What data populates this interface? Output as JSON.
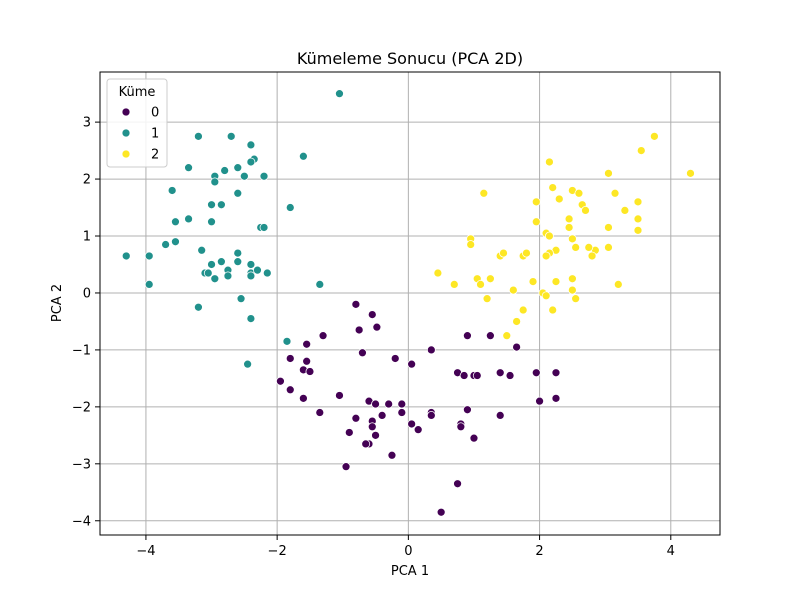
{
  "chart_data": {
    "type": "scatter",
    "title": "Kümeleme Sonucu (PCA 2D)",
    "xlabel": "PCA 1",
    "ylabel": "PCA 2",
    "xlim": [
      -4.7,
      4.75
    ],
    "ylim": [
      -4.25,
      3.88
    ],
    "xticks": [
      -4,
      -2,
      0,
      2,
      4
    ],
    "yticks": [
      -4,
      -3,
      -2,
      -1,
      0,
      1,
      2,
      3
    ],
    "xtick_labels": [
      "−4",
      "−2",
      "0",
      "2",
      "4"
    ],
    "ytick_labels": [
      "−4",
      "−3",
      "−2",
      "−1",
      "0",
      "1",
      "2",
      "3"
    ],
    "grid": true,
    "legend": {
      "title": "Küme",
      "placement": "top-left"
    },
    "series": [
      {
        "name": "0",
        "color": "#440154",
        "points": [
          [
            -0.8,
            -0.2
          ],
          [
            -0.55,
            -0.38
          ],
          [
            -0.48,
            -0.6
          ],
          [
            -0.75,
            -0.65
          ],
          [
            -1.3,
            -0.75
          ],
          [
            -1.55,
            -0.9
          ],
          [
            -0.7,
            -1.05
          ],
          [
            -1.8,
            -1.15
          ],
          [
            -1.55,
            -1.2
          ],
          [
            -1.6,
            -1.35
          ],
          [
            -1.5,
            -1.38
          ],
          [
            -1.95,
            -1.55
          ],
          [
            -1.8,
            -1.7
          ],
          [
            -1.6,
            -1.85
          ],
          [
            -1.05,
            -1.8
          ],
          [
            -1.35,
            -2.1
          ],
          [
            -0.6,
            -1.9
          ],
          [
            -0.5,
            -1.95
          ],
          [
            -0.3,
            -1.95
          ],
          [
            -0.1,
            -1.95
          ],
          [
            -0.1,
            -2.1
          ],
          [
            -0.4,
            -2.15
          ],
          [
            -0.55,
            -2.25
          ],
          [
            -0.55,
            -2.35
          ],
          [
            -0.8,
            -2.2
          ],
          [
            -0.9,
            -2.45
          ],
          [
            -0.5,
            -2.5
          ],
          [
            -0.6,
            -2.65
          ],
          [
            -0.65,
            -2.65
          ],
          [
            -0.95,
            -3.05
          ],
          [
            -0.25,
            -2.85
          ],
          [
            0.05,
            -2.3
          ],
          [
            0.15,
            -2.4
          ],
          [
            0.35,
            -2.1
          ],
          [
            0.35,
            -2.15
          ],
          [
            0.8,
            -2.3
          ],
          [
            0.8,
            -2.35
          ],
          [
            0.9,
            -2.05
          ],
          [
            1.0,
            -2.55
          ],
          [
            1.4,
            -2.15
          ],
          [
            0.75,
            -3.35
          ],
          [
            0.5,
            -3.85
          ],
          [
            -0.2,
            -1.15
          ],
          [
            0.05,
            -1.25
          ],
          [
            0.35,
            -1.0
          ],
          [
            0.9,
            -0.75
          ],
          [
            1.25,
            -0.75
          ],
          [
            0.75,
            -1.4
          ],
          [
            0.85,
            -1.45
          ],
          [
            1.0,
            -1.45
          ],
          [
            1.05,
            -1.45
          ],
          [
            1.4,
            -1.4
          ],
          [
            1.55,
            -1.45
          ],
          [
            1.65,
            -0.95
          ],
          [
            1.95,
            -1.4
          ],
          [
            2.25,
            -1.4
          ],
          [
            2.0,
            -1.9
          ],
          [
            2.25,
            -1.85
          ]
        ]
      },
      {
        "name": "1",
        "color": "#21918c",
        "points": [
          [
            -1.05,
            3.5
          ],
          [
            -3.2,
            2.75
          ],
          [
            -2.7,
            2.75
          ],
          [
            -2.4,
            2.6
          ],
          [
            -2.35,
            2.35
          ],
          [
            -2.4,
            2.3
          ],
          [
            -1.6,
            2.4
          ],
          [
            -3.35,
            2.2
          ],
          [
            -2.6,
            2.2
          ],
          [
            -2.8,
            2.15
          ],
          [
            -2.95,
            2.05
          ],
          [
            -2.95,
            1.95
          ],
          [
            -2.5,
            2.05
          ],
          [
            -2.2,
            2.05
          ],
          [
            -3.6,
            1.8
          ],
          [
            -2.6,
            1.75
          ],
          [
            -3.0,
            1.55
          ],
          [
            -2.85,
            1.55
          ],
          [
            -1.8,
            1.5
          ],
          [
            -3.55,
            1.25
          ],
          [
            -3.35,
            1.3
          ],
          [
            -3.0,
            1.25
          ],
          [
            -2.25,
            1.15
          ],
          [
            -2.2,
            1.15
          ],
          [
            -3.7,
            0.85
          ],
          [
            -3.55,
            0.9
          ],
          [
            -3.15,
            0.75
          ],
          [
            -2.6,
            0.7
          ],
          [
            -2.6,
            0.55
          ],
          [
            -2.85,
            0.55
          ],
          [
            -3.0,
            0.5
          ],
          [
            -2.4,
            0.5
          ],
          [
            -3.1,
            0.35
          ],
          [
            -3.05,
            0.35
          ],
          [
            -2.75,
            0.4
          ],
          [
            -2.4,
            0.35
          ],
          [
            -2.3,
            0.4
          ],
          [
            -2.15,
            0.35
          ],
          [
            -2.75,
            0.3
          ],
          [
            -2.95,
            0.25
          ],
          [
            -2.4,
            0.3
          ],
          [
            -3.95,
            0.65
          ],
          [
            -4.3,
            0.65
          ],
          [
            -3.95,
            0.15
          ],
          [
            -1.35,
            0.15
          ],
          [
            -2.55,
            -0.1
          ],
          [
            -3.2,
            -0.25
          ],
          [
            -2.4,
            -0.45
          ],
          [
            -1.85,
            -0.85
          ],
          [
            -2.45,
            -1.25
          ]
        ]
      },
      {
        "name": "2",
        "color": "#fde725",
        "points": [
          [
            3.75,
            2.75
          ],
          [
            3.55,
            2.5
          ],
          [
            4.3,
            2.1
          ],
          [
            3.05,
            2.1
          ],
          [
            2.15,
            2.3
          ],
          [
            2.2,
            1.85
          ],
          [
            2.5,
            1.8
          ],
          [
            2.6,
            1.75
          ],
          [
            3.15,
            1.75
          ],
          [
            3.5,
            1.6
          ],
          [
            1.15,
            1.75
          ],
          [
            1.95,
            1.6
          ],
          [
            2.3,
            1.65
          ],
          [
            2.65,
            1.55
          ],
          [
            2.45,
            1.3
          ],
          [
            2.7,
            1.45
          ],
          [
            1.95,
            1.25
          ],
          [
            2.1,
            1.05
          ],
          [
            2.15,
            1.0
          ],
          [
            2.45,
            1.15
          ],
          [
            3.05,
            1.15
          ],
          [
            3.5,
            1.3
          ],
          [
            3.5,
            1.1
          ],
          [
            3.3,
            1.45
          ],
          [
            0.95,
            0.95
          ],
          [
            0.95,
            0.85
          ],
          [
            2.5,
            0.95
          ],
          [
            2.85,
            0.75
          ],
          [
            2.75,
            0.8
          ],
          [
            2.8,
            0.65
          ],
          [
            3.05,
            0.8
          ],
          [
            2.25,
            0.75
          ],
          [
            2.55,
            0.8
          ],
          [
            2.15,
            0.7
          ],
          [
            2.1,
            0.65
          ],
          [
            1.4,
            0.65
          ],
          [
            1.45,
            0.7
          ],
          [
            1.75,
            0.65
          ],
          [
            1.8,
            0.7
          ],
          [
            0.45,
            0.35
          ],
          [
            0.7,
            0.15
          ],
          [
            1.05,
            0.25
          ],
          [
            1.1,
            0.15
          ],
          [
            1.25,
            0.25
          ],
          [
            1.6,
            0.05
          ],
          [
            1.9,
            0.2
          ],
          [
            2.05,
            0.0
          ],
          [
            2.25,
            0.2
          ],
          [
            2.5,
            0.25
          ],
          [
            2.5,
            0.05
          ],
          [
            2.55,
            -0.1
          ],
          [
            2.1,
            -0.05
          ],
          [
            1.2,
            -0.1
          ],
          [
            1.75,
            -0.3
          ],
          [
            2.2,
            -0.3
          ],
          [
            1.65,
            -0.5
          ],
          [
            1.5,
            -0.75
          ],
          [
            3.2,
            0.15
          ]
        ]
      }
    ]
  }
}
